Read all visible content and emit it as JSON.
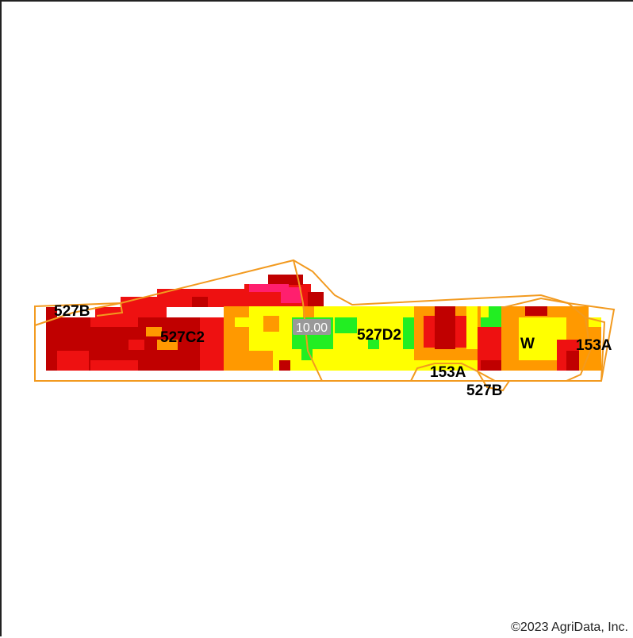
{
  "map": {
    "soil_labels": [
      "527B",
      "527C2",
      "527D2",
      "153A",
      "527B",
      "W",
      "153A"
    ],
    "value_label": "10.00",
    "copyright": "©2023 AgriData, Inc.",
    "colors": {
      "dark_red": "#c00000",
      "red": "#ee1111",
      "magenta": "#ff1f6e",
      "orange": "#ff9900",
      "yellow": "#ffff00",
      "green": "#22ee22",
      "boundary": "#f29a1f"
    }
  }
}
